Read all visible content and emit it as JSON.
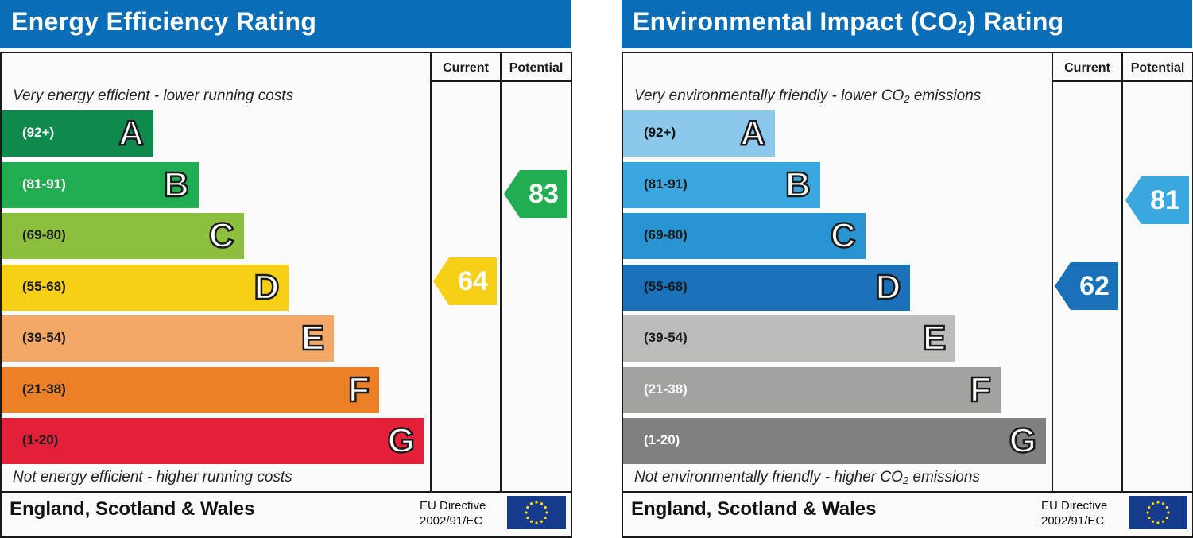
{
  "chart_data": [
    {
      "type": "bar",
      "title": "Energy Efficiency Rating",
      "column_headers": [
        "Current",
        "Potential"
      ],
      "top_caption": "Very energy efficient - lower running costs",
      "bottom_caption": "Not energy efficient - higher running costs",
      "bands": [
        {
          "letter": "A",
          "range": "(92+)",
          "color": "#0f8a4f",
          "text_color": "#ffffff"
        },
        {
          "letter": "B",
          "range": "(81-91)",
          "color": "#22ad52",
          "text_color": "#ffffff"
        },
        {
          "letter": "C",
          "range": "(69-80)",
          "color": "#8dbf3f",
          "text_color": "#1a1a1a"
        },
        {
          "letter": "D",
          "range": "(55-68)",
          "color": "#f7cf16",
          "text_color": "#1a1a1a"
        },
        {
          "letter": "E",
          "range": "(39-54)",
          "color": "#f3a867",
          "text_color": "#1a1a1a"
        },
        {
          "letter": "F",
          "range": "(21-38)",
          "color": "#ec8026",
          "text_color": "#1a1a1a"
        },
        {
          "letter": "G",
          "range": "(1-20)",
          "color": "#e41f39",
          "text_color": "#1a1a1a"
        }
      ],
      "current": {
        "value": "64",
        "band": "D",
        "color": "#f7cf16"
      },
      "potential": {
        "value": "83",
        "band": "B",
        "color": "#22ad52"
      },
      "footer_region": "England, Scotland & Wales",
      "directive_line1": "EU Directive",
      "directive_line2": "2002/91/EC"
    },
    {
      "type": "bar",
      "title_main": "Environmental Impact (CO",
      "title_sub": "2",
      "title_end": ") Rating",
      "column_headers": [
        "Current",
        "Potential"
      ],
      "top_caption_main": "Very environmentally friendly - lower CO",
      "top_caption_sub": "2",
      "top_caption_end": " emissions",
      "bottom_caption_main": "Not environmentally friendly - higher CO",
      "bottom_caption_sub": "2",
      "bottom_caption_end": " emissions",
      "bands": [
        {
          "letter": "A",
          "range": "(92+)",
          "color": "#8cc8ec",
          "text_color": "#111111"
        },
        {
          "letter": "B",
          "range": "(81-91)",
          "color": "#3ba7e0",
          "text_color": "#1a1a1a"
        },
        {
          "letter": "C",
          "range": "(69-80)",
          "color": "#2895d2",
          "text_color": "#1a1a1a"
        },
        {
          "letter": "D",
          "range": "(55-68)",
          "color": "#1971b9",
          "text_color": "#1a1a1a"
        },
        {
          "letter": "E",
          "range": "(39-54)",
          "color": "#bcbcba",
          "text_color": "#1a1a1a"
        },
        {
          "letter": "F",
          "range": "(21-38)",
          "color": "#a2a2a0",
          "text_color": "#ffffff"
        },
        {
          "letter": "G",
          "range": "(1-20)",
          "color": "#808080",
          "text_color": "#ffffff"
        }
      ],
      "current": {
        "value": "62",
        "band": "D",
        "color": "#1971b9"
      },
      "potential": {
        "value": "81",
        "band": "B",
        "color": "#3ba7e0"
      },
      "footer_region": "England, Scotland & Wales",
      "directive_line1": "EU Directive",
      "directive_line2": "2002/91/EC"
    }
  ]
}
